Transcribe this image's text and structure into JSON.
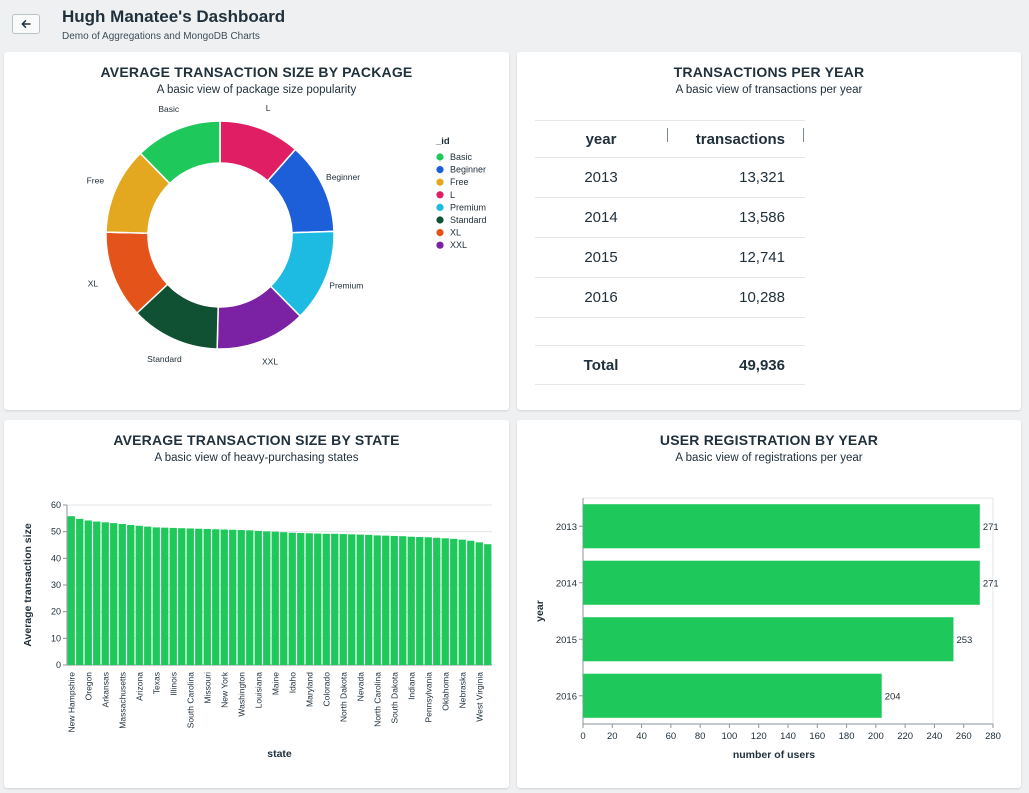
{
  "header": {
    "title": "Hugh Manatee's Dashboard",
    "subtitle": "Demo of Aggregations and MongoDB Charts",
    "back_icon": "arrow-left-icon"
  },
  "card_package": {
    "title": "AVERAGE TRANSACTION SIZE BY PACKAGE",
    "subtitle": "A basic view of package size popularity"
  },
  "card_transactions": {
    "title": "TRANSACTIONS PER YEAR",
    "subtitle": "A basic view of transactions per year",
    "columns": [
      "year",
      "transactions"
    ],
    "rows": [
      {
        "year": "2013",
        "transactions": "13,321"
      },
      {
        "year": "2014",
        "transactions": "13,586"
      },
      {
        "year": "2015",
        "transactions": "12,741"
      },
      {
        "year": "2016",
        "transactions": "10,288"
      }
    ],
    "total_label": "Total",
    "total_value": "49,936"
  },
  "card_state": {
    "title": "AVERAGE TRANSACTION SIZE BY STATE",
    "subtitle": "A basic view of heavy-purchasing states"
  },
  "card_registration": {
    "title": "USER REGISTRATION BY YEAR",
    "subtitle": "A basic view of registrations per year"
  },
  "chart_data": [
    {
      "type": "pie",
      "title": "AVERAGE TRANSACTION SIZE BY PACKAGE",
      "subtitle": "A basic view of package size popularity",
      "legend_title": "_id",
      "legend_position": "right",
      "legend": [
        "Basic",
        "Beginner",
        "Free",
        "L",
        "Premium",
        "Standard",
        "XL",
        "XXL"
      ],
      "slices": [
        {
          "label": "L",
          "value": 11.5,
          "color": "#e01e64"
        },
        {
          "label": "Beginner",
          "value": 13.0,
          "color": "#1c5fd8"
        },
        {
          "label": "Premium",
          "value": 13.1,
          "color": "#1dbbe2"
        },
        {
          "label": "XXL",
          "value": 12.8,
          "color": "#7b22a4"
        },
        {
          "label": "Standard",
          "value": 12.6,
          "color": "#0f5132"
        },
        {
          "label": "XL",
          "value": 12.4,
          "color": "#e4531a"
        },
        {
          "label": "Free",
          "value": 12.3,
          "color": "#e3a81f"
        },
        {
          "label": "Basic",
          "value": 12.3,
          "color": "#1ec85a"
        }
      ],
      "colors": {
        "Basic": "#1ec85a",
        "Beginner": "#1c5fd8",
        "Free": "#e3a81f",
        "L": "#e01e64",
        "Premium": "#1dbbe2",
        "Standard": "#0f5132",
        "XL": "#e4531a",
        "XXL": "#7b22a4"
      }
    },
    {
      "type": "bar",
      "title": "AVERAGE TRANSACTION SIZE BY STATE",
      "subtitle": "A basic view of heavy-purchasing states",
      "xlabel": "state",
      "ylabel": "Average transaction size",
      "ylim": [
        0,
        60
      ],
      "yticks": [
        0,
        10,
        20,
        30,
        40,
        50,
        60
      ],
      "grid": true,
      "bar_color": "#1ec85a",
      "categories": [
        "New Hampshire",
        "",
        "Oregon",
        "",
        "Arkansas",
        "",
        "Massachusetts",
        "",
        "Arizona",
        "",
        "Texas",
        "",
        "Illinois",
        "",
        "South Carolina",
        "",
        "Missouri",
        "",
        "New York",
        "",
        "Washington",
        "",
        "Louisiana",
        "",
        "Maine",
        "",
        "Idaho",
        "",
        "Maryland",
        "",
        "Colorado",
        "",
        "North Dakota",
        "",
        "Nevada",
        "",
        "North Carolina",
        "",
        "South Dakota",
        "",
        "Indiana",
        "",
        "Pennsylvania",
        "",
        "Oklahoma",
        "",
        "Nebraska",
        "",
        "West Virginia",
        ""
      ],
      "values": [
        55.8,
        54.8,
        54.2,
        53.8,
        53.5,
        53.2,
        52.9,
        52.5,
        52.2,
        51.9,
        51.6,
        51.5,
        51.4,
        51.3,
        51.2,
        51.1,
        51.0,
        50.9,
        50.8,
        50.7,
        50.6,
        50.5,
        50.3,
        50.1,
        50.0,
        49.8,
        49.6,
        49.5,
        49.4,
        49.3,
        49.2,
        49.2,
        49.1,
        49.0,
        48.9,
        48.8,
        48.6,
        48.5,
        48.4,
        48.3,
        48.1,
        48.0,
        47.9,
        47.7,
        47.5,
        47.3,
        47.0,
        46.6,
        46.0,
        45.3
      ]
    },
    {
      "type": "bar",
      "orientation": "horizontal",
      "title": "USER REGISTRATION BY YEAR",
      "subtitle": "A basic view of registrations per year",
      "xlabel": "number of users",
      "ylabel": "year",
      "xlim": [
        0,
        280
      ],
      "xticks": [
        0,
        20,
        40,
        60,
        80,
        100,
        120,
        140,
        160,
        180,
        200,
        220,
        240,
        260,
        280
      ],
      "bar_color": "#1ec85a",
      "categories": [
        "2013",
        "2014",
        "2015",
        "2016"
      ],
      "values": [
        271,
        271,
        253,
        204
      ],
      "value_labels": [
        "271",
        "271",
        "253",
        "204"
      ]
    }
  ]
}
